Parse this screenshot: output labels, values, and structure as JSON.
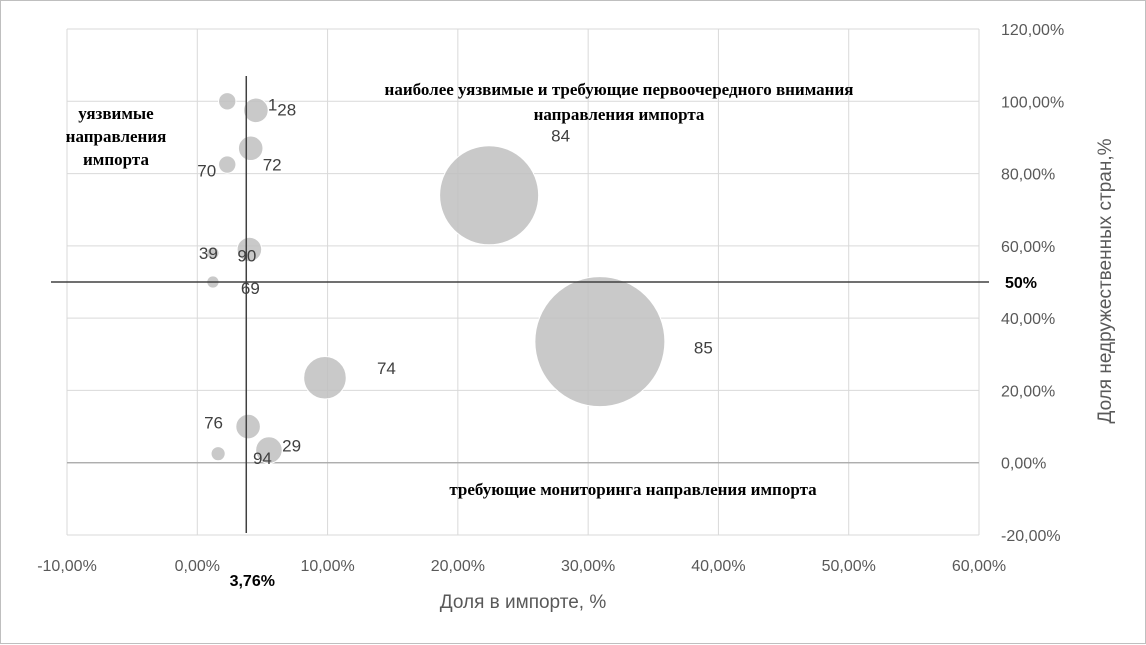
{
  "chart_data": {
    "type": "bubble",
    "xlabel": "Доля в импорте, %",
    "ylabel": "Доля недружественных стран,%",
    "xlim": [
      -0.1,
      0.6
    ],
    "ylim": [
      -0.2,
      1.2
    ],
    "x_ticks": [
      "-10,00%",
      "0,00%",
      "10,00%",
      "20,00%",
      "30,00%",
      "40,00%",
      "50,00%",
      "60,00%"
    ],
    "y_ticks": [
      "120,00%",
      "100,00%",
      "80,00%",
      "60,00%",
      "40,00%",
      "20,00%",
      "0,00%",
      "-20,00%"
    ],
    "grid": true,
    "reference_lines": {
      "vertical": {
        "x": 0.0376,
        "label": "3,76%"
      },
      "horizontal": {
        "y": 0.5,
        "label": "50%"
      }
    },
    "points": [
      {
        "label": "1",
        "x": 0.045,
        "y": 0.975,
        "size": 1.2
      },
      {
        "label": "28",
        "x": 0.023,
        "y": 1.0,
        "size": 0.6
      },
      {
        "label": "72",
        "x": 0.041,
        "y": 0.87,
        "size": 1.2
      },
      {
        "label": "70",
        "x": 0.023,
        "y": 0.825,
        "size": 0.6
      },
      {
        "label": "84",
        "x": 0.224,
        "y": 0.74,
        "size": 19.5
      },
      {
        "label": "90",
        "x": 0.04,
        "y": 0.59,
        "size": 1.2
      },
      {
        "label": "39",
        "x": 0.012,
        "y": 0.58,
        "size": 0.3
      },
      {
        "label": "69",
        "x": 0.012,
        "y": 0.5,
        "size": 0.3
      },
      {
        "label": "85",
        "x": 0.309,
        "y": 0.335,
        "size": 33.6
      },
      {
        "label": "74",
        "x": 0.098,
        "y": 0.235,
        "size": 3.6
      },
      {
        "label": "76",
        "x": 0.039,
        "y": 0.1,
        "size": 1.2
      },
      {
        "label": "94",
        "x": 0.055,
        "y": 0.035,
        "size": 1.4
      },
      {
        "label": "29",
        "x": 0.016,
        "y": 0.025,
        "size": 0.4
      }
    ],
    "annotations": {
      "vulnerable": [
        "уязвимые",
        "направления",
        "импорта"
      ],
      "most_vulnerable": [
        "наиболее уязвимые и требующие первоочередного внимания",
        "направления импорта"
      ],
      "monitoring": [
        "требующие мониторинга направления импорта"
      ]
    }
  }
}
